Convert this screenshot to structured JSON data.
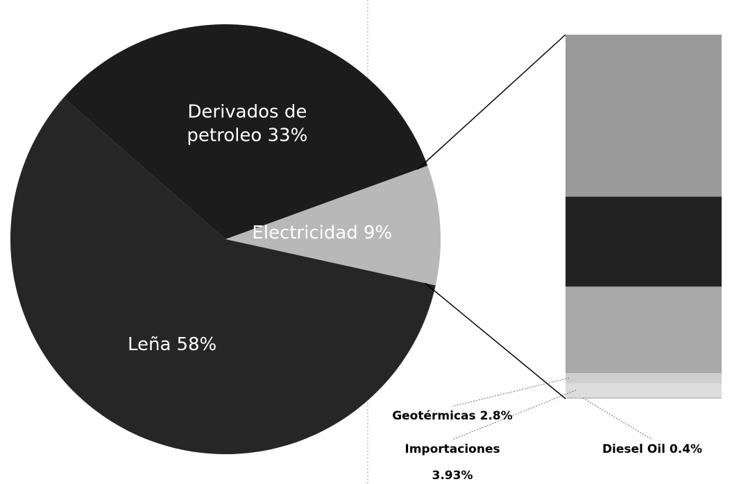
{
  "chart_data": {
    "type": "pie",
    "categories": [
      "Derivados de petroleo",
      "Electricidad",
      "Leña"
    ],
    "values": [
      33,
      9,
      58
    ],
    "value_labels": [
      "33%",
      "9%",
      "58%"
    ],
    "colors": [
      "#1c1c1c",
      "#b8b8b8",
      "#262626"
    ],
    "breakdown": {
      "categories": [
        null,
        null,
        null,
        "Geotérmicas",
        "Importaciones",
        "Diesel Oil"
      ],
      "values": [
        45,
        25,
        24,
        2.8,
        3.93,
        0.4
      ],
      "value_labels": [
        null,
        null,
        null,
        "2.8%",
        "3.93%",
        "0.4%"
      ],
      "colors": [
        "#9a9a9a",
        "#222222",
        "#a8a8a8",
        "#cfcfcf",
        "#dddddd",
        "#c4c4c4"
      ]
    }
  }
}
